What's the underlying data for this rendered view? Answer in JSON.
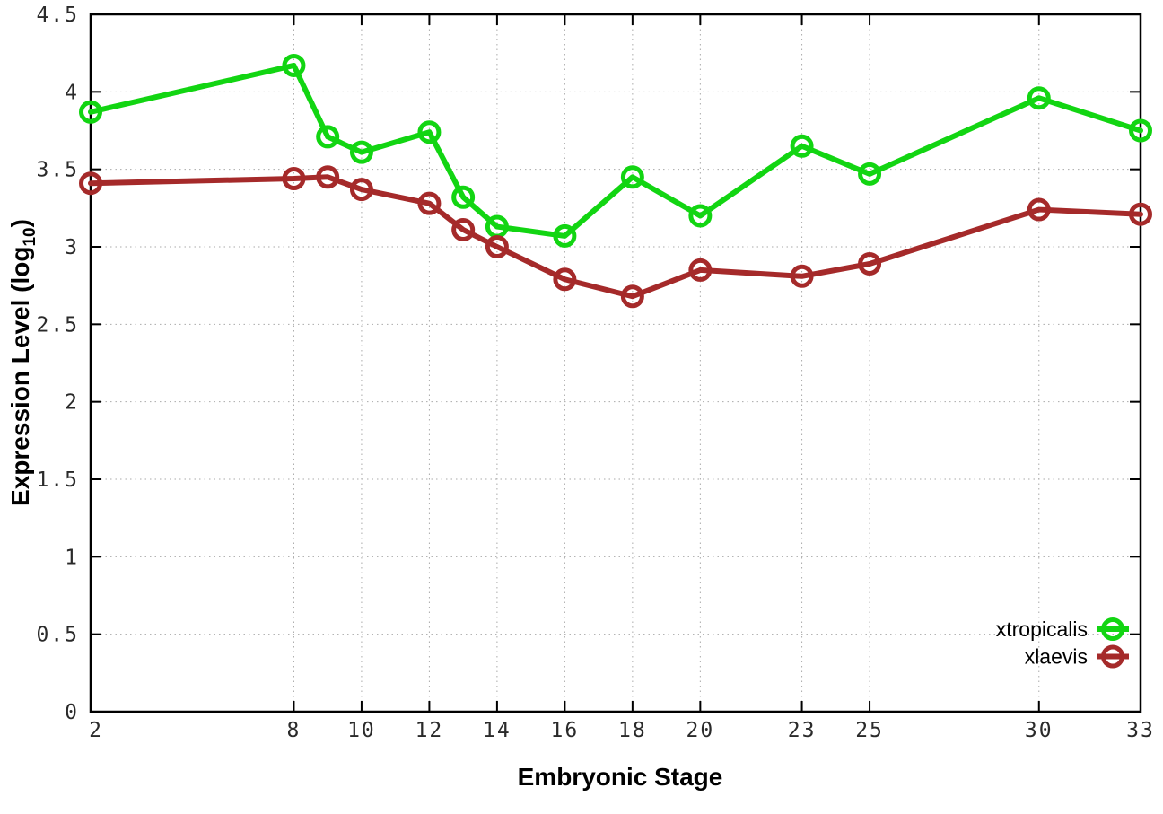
{
  "page": {
    "background": "#ffffff"
  },
  "chart_data": {
    "type": "line",
    "title": "",
    "xlabel": "Embryonic Stage",
    "ylabel": "Expression Level (log10)",
    "ylabel_parts": {
      "main": "Expression Level (log",
      "sub": "10",
      "end": ")"
    },
    "x": [
      2,
      8,
      9,
      10,
      12,
      13,
      14,
      16,
      18,
      20,
      23,
      25,
      30,
      33
    ],
    "xticks": [
      2,
      8,
      10,
      12,
      14,
      16,
      18,
      20,
      23,
      25,
      30,
      33
    ],
    "xtick_labels": [
      "2",
      "8",
      "10",
      "12",
      "14",
      "16",
      "18",
      "20",
      "23",
      "25",
      "30",
      "33"
    ],
    "yticks": [
      0,
      0.5,
      1,
      1.5,
      2,
      2.5,
      3,
      3.5,
      4,
      4.5
    ],
    "ytick_labels": [
      "0",
      "0.5",
      "1",
      "1.5",
      "2",
      "2.5",
      "3",
      "3.5",
      "4",
      "4.5"
    ],
    "xlim": [
      2,
      33
    ],
    "ylim": [
      0,
      4.5
    ],
    "grid": "dotted, both axes",
    "legend_position": "inside bottom-right",
    "series": [
      {
        "name": "xtropicalis",
        "color": "#12d512",
        "marker": "open-circle",
        "values": [
          3.87,
          4.17,
          3.71,
          3.61,
          3.74,
          3.32,
          3.13,
          3.07,
          3.45,
          3.2,
          3.65,
          3.47,
          3.96,
          3.75
        ]
      },
      {
        "name": "xlaevis",
        "color": "#a52a2a",
        "marker": "open-circle",
        "values": [
          3.41,
          3.44,
          3.45,
          3.37,
          3.28,
          3.11,
          3.0,
          2.79,
          2.68,
          2.85,
          2.81,
          2.89,
          3.24,
          3.21
        ]
      }
    ],
    "colors": {
      "axis": "#000000",
      "grid": "#aaaaaa",
      "tick_text": "#2a2a2a"
    }
  }
}
